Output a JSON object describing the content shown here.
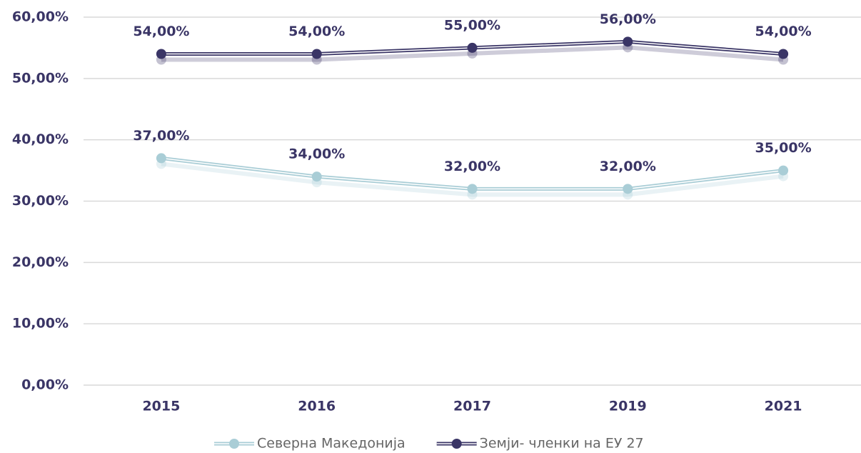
{
  "chart_data": {
    "type": "line",
    "categories": [
      "2015",
      "2016",
      "2017",
      "2019",
      "2021"
    ],
    "series": [
      {
        "name": "Северна Македонија",
        "color": "#a9cdd6",
        "values": [
          37,
          34,
          32,
          32,
          35
        ],
        "value_labels": [
          "37,00%",
          "34,00%",
          "32,00%",
          "32,00%",
          "35,00%"
        ]
      },
      {
        "name": "Земји- членки на ЕУ 27",
        "color": "#3a3566",
        "values": [
          54,
          54,
          55,
          56,
          54
        ],
        "value_labels": [
          "54,00%",
          "54,00%",
          "55,00%",
          "56,00%",
          "54,00%"
        ]
      }
    ],
    "ylim": [
      0,
      60
    ],
    "yticks": [
      {
        "value": 0,
        "label": "0,00%"
      },
      {
        "value": 10,
        "label": "10,00%"
      },
      {
        "value": 20,
        "label": "20,00%"
      },
      {
        "value": 30,
        "label": "30,00%"
      },
      {
        "value": 40,
        "label": "40,00%"
      },
      {
        "value": 50,
        "label": "50,00%"
      },
      {
        "value": 60,
        "label": "60,00%"
      }
    ],
    "grid": true,
    "legend": "bottom"
  }
}
